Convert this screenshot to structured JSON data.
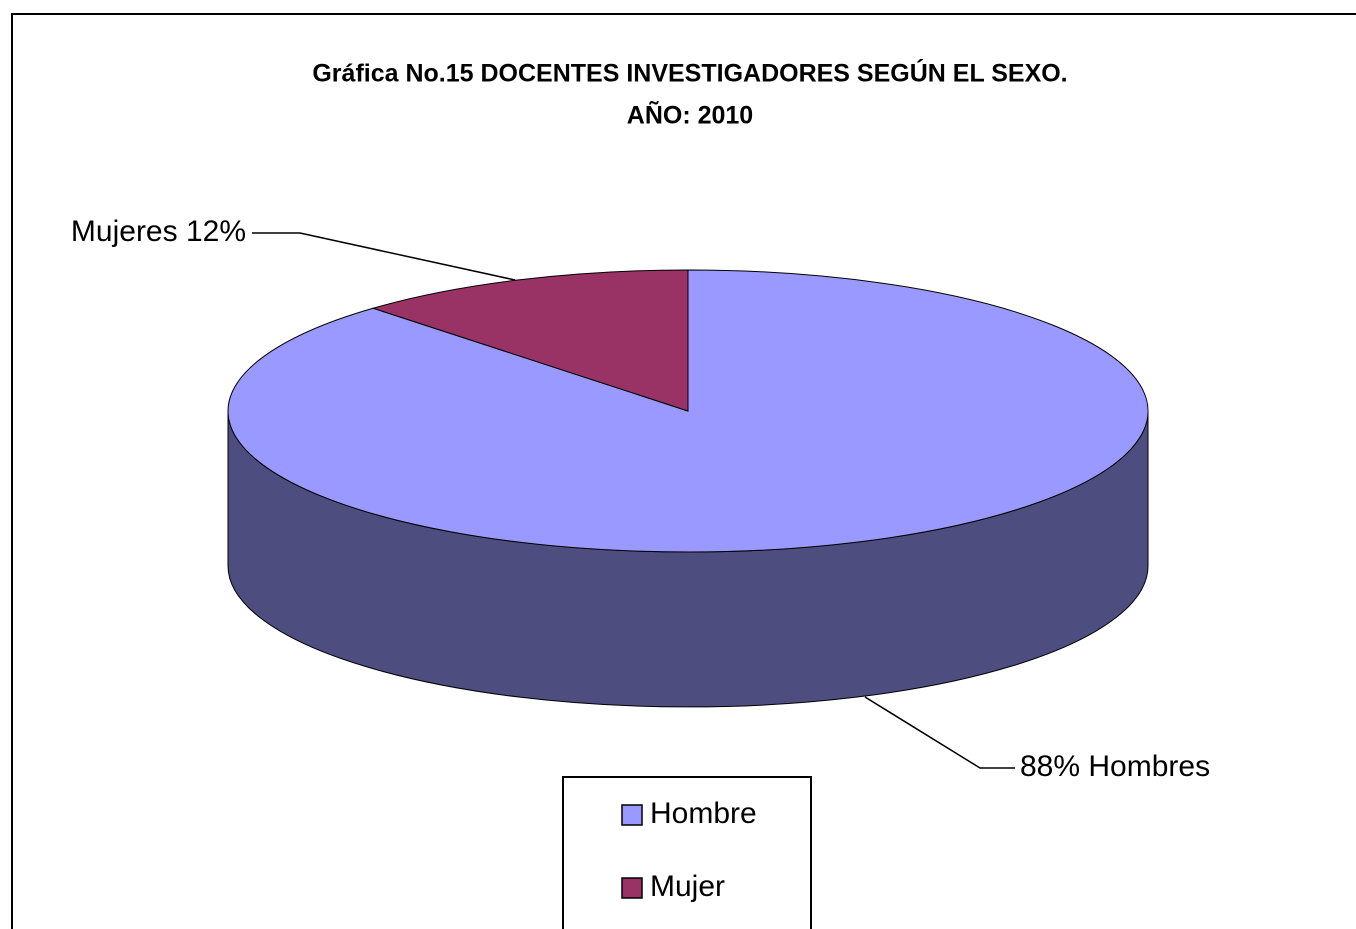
{
  "chart_data": {
    "type": "pie",
    "title": [
      "Gráfica No.15 DOCENTES INVESTIGADORES SEGÚN EL SEXO.",
      "AÑO: 2010"
    ],
    "categories": [
      "Hombre",
      "Mujer"
    ],
    "values": [
      88,
      12
    ],
    "value_labels": [
      "88%  Hombres",
      "Mujeres 12%"
    ],
    "colors": [
      "#9999ff",
      "#993366"
    ],
    "legend": "bottom"
  }
}
